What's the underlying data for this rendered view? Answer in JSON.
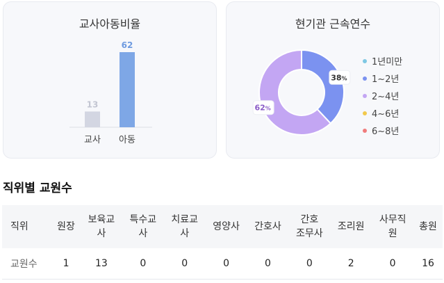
{
  "ratio_card": {
    "title": "교사아동비율"
  },
  "tenure_card": {
    "title": "현기관 근속연수"
  },
  "chart_data": [
    {
      "type": "bar",
      "title": "교사아동비율",
      "categories": [
        "교사",
        "아동"
      ],
      "values": [
        13,
        62
      ],
      "colors": [
        "#d3d6e2",
        "#7ea7e6"
      ],
      "label_colors": [
        "#c3c6d2",
        "#6f9be0"
      ]
    },
    {
      "type": "pie",
      "title": "현기관 근속연수",
      "donut": true,
      "labels": [
        "1년미만",
        "1~2년",
        "2~4년",
        "4~6년",
        "6~8년"
      ],
      "values": [
        0,
        38,
        62,
        0,
        0
      ],
      "unit": "%",
      "colors": [
        "#7ec8e3",
        "#7b92f0",
        "#c3a6f3",
        "#f2c94c",
        "#f07c7c"
      ],
      "label_colors": [
        "#555",
        "#333",
        "#8a5cc7",
        "#555",
        "#555"
      ]
    }
  ],
  "staff_section": {
    "title": "직위별 교원수",
    "headers": [
      "직위",
      "원장",
      "보육교\n사",
      "특수교\n사",
      "치료교\n사",
      "영양사",
      "간호사",
      "간호\n조무사",
      "조리원",
      "사무직\n원",
      "총원"
    ],
    "row_label": "교원수",
    "values": [
      "1",
      "13",
      "0",
      "0",
      "0",
      "0",
      "0",
      "2",
      "0",
      "16"
    ]
  }
}
